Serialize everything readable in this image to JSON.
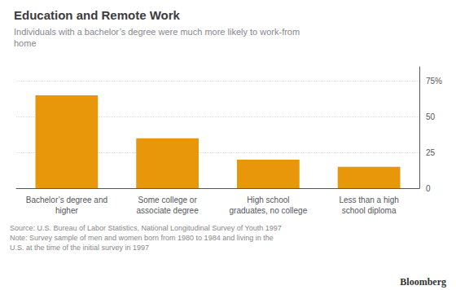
{
  "chart_data": {
    "type": "bar",
    "title": "Education and Remote Work",
    "subtitle": "Individuals with a bachelor’s degree were much more likely to work-from\nhome",
    "categories": [
      "Bachelor’s degree and\nhigher",
      "Some college or\nassociate degree",
      "High school\ngraduates, no college",
      "Less than a high\nschool diploma"
    ],
    "values": [
      65,
      35,
      20,
      15
    ],
    "color": "#E8960A",
    "ylim": [
      0,
      85
    ],
    "yticks": [
      0,
      25,
      50,
      {
        "value": 75,
        "label": "75%"
      }
    ],
    "grid": true,
    "annotations": [
      "Source: U.S. Bureau of Labor Statistics, National Longitudinal Survey of Youth 1997\nNote: Survey sample of men and women born from 1980 to 1984 and living in the\nU.S. at the time of the initial survey in 1997",
      "Bloomberg"
    ]
  }
}
